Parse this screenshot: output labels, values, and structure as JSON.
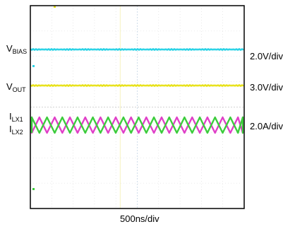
{
  "chart_data": {
    "type": "line",
    "x_scale": "500ns/div",
    "traces": [
      {
        "name": "V",
        "subscript": "BIAS",
        "scale": "2.0V/div",
        "color": "#2ed3e6",
        "kind": "dc"
      },
      {
        "name": "V",
        "subscript": "OUT",
        "scale": "3.0V/div",
        "color": "#e8e21f",
        "kind": "dc"
      },
      {
        "name": "I",
        "subscript": "LX1",
        "scale": "2.0A/div",
        "color": "#e040c8",
        "kind": "triangle",
        "phase": 0.0
      },
      {
        "name": "I",
        "subscript": "LX2",
        "scale": "",
        "color": "#3ccc3c",
        "kind": "triangle",
        "phase": 0.5
      }
    ],
    "switching_periods_visible": 14,
    "grid": {
      "divisions_x": 10,
      "divisions_y": 8,
      "ticks": true
    }
  }
}
